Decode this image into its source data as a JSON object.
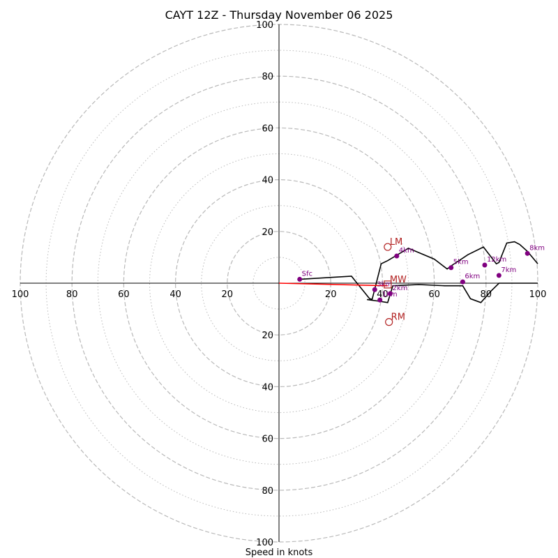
{
  "chart_data": {
    "type": "hodograph",
    "title": "CAYT 12Z - Thursday November 06 2025",
    "xlabel": "Speed in knots",
    "range": [
      -100,
      100
    ],
    "rings_major": [
      20,
      40,
      60,
      80,
      100
    ],
    "rings_minor": [
      10,
      30,
      50,
      70,
      90
    ],
    "tick_values": [
      20,
      40,
      60,
      80,
      100
    ],
    "tick_labels": [
      "20",
      "40",
      "60",
      "80",
      "100"
    ],
    "colors": {
      "ring": "#b9b9b9",
      "profile": "#000000",
      "shear": "#ff0000",
      "height_marker": "#800080",
      "motion": "#b22222"
    },
    "profile": [
      [
        8,
        1.5
      ],
      [
        28,
        2.7
      ],
      [
        35,
        -6
      ],
      [
        36,
        -6.2
      ],
      [
        39.5,
        7.5
      ],
      [
        42,
        8.7
      ],
      [
        45,
        10.5
      ],
      [
        50,
        13.5
      ],
      [
        60,
        9.3
      ],
      [
        65,
        5.5
      ],
      [
        67,
        7
      ],
      [
        73,
        11
      ],
      [
        79,
        14
      ],
      [
        84,
        7.5
      ],
      [
        85,
        8
      ],
      [
        88,
        15.5
      ],
      [
        91,
        16
      ],
      [
        93,
        15
      ],
      [
        96,
        12.3
      ],
      [
        100,
        7.5
      ]
    ],
    "profile_lower": [
      [
        34,
        -6.3
      ],
      [
        39,
        -7
      ],
      [
        42,
        -7.5
      ],
      [
        44,
        -1
      ],
      [
        54,
        -0.5
      ],
      [
        64,
        -1
      ],
      [
        71,
        -1
      ],
      [
        74,
        -6
      ],
      [
        78,
        -7.5
      ],
      [
        82,
        -3
      ],
      [
        85,
        0
      ],
      [
        100,
        0
      ]
    ],
    "shear_vector": {
      "from": [
        0,
        0
      ],
      "to": [
        42,
        -1
      ]
    },
    "height_markers": [
      {
        "label": "Sfc",
        "u": 8,
        "v": 1.5
      },
      {
        "label": "1km",
        "u": 39,
        "v": -6.5
      },
      {
        "label": "2km",
        "u": 43,
        "v": -4
      },
      {
        "label": "3km",
        "u": 37,
        "v": -2.5
      },
      {
        "label": "4km",
        "u": 45.5,
        "v": 10.5
      },
      {
        "label": "5km",
        "u": 66.5,
        "v": 6
      },
      {
        "label": "6km",
        "u": 71,
        "v": 0.5
      },
      {
        "label": "7km",
        "u": 85,
        "v": 3
      },
      {
        "label": "8km",
        "u": 96,
        "v": 11.5
      },
      {
        "label": "12km",
        "u": 79.5,
        "v": 7
      }
    ],
    "storm_motion": [
      {
        "label": "LM",
        "u": 42,
        "v": 14,
        "marker": "circle"
      },
      {
        "label": "MW",
        "u": 42,
        "v": -0.5,
        "marker": "square"
      },
      {
        "label": "RM",
        "u": 42.5,
        "v": -15,
        "marker": "circle"
      }
    ]
  }
}
